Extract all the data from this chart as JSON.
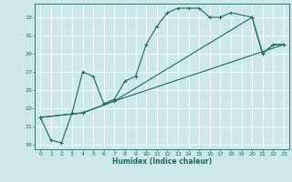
{
  "title": "",
  "xlabel": "Humidex (Indice chaleur)",
  "bg_color": "#cde8e8",
  "grid_color": "#ffffff",
  "line_color": "#1a6b60",
  "xlim": [
    -0.5,
    23.5
  ],
  "ylim": [
    18.5,
    34.5
  ],
  "xticks": [
    0,
    1,
    2,
    3,
    4,
    5,
    6,
    7,
    8,
    9,
    10,
    11,
    12,
    13,
    14,
    15,
    16,
    17,
    18,
    19,
    20,
    21,
    22,
    23
  ],
  "yticks": [
    19,
    21,
    23,
    25,
    27,
    29,
    31,
    33
  ],
  "line1_x": [
    0,
    1,
    2,
    3,
    4,
    5,
    6,
    7,
    8,
    9,
    10,
    11,
    12,
    13,
    14,
    15,
    16,
    17,
    18,
    20,
    21,
    22,
    23
  ],
  "line1_y": [
    22.0,
    19.5,
    19.2,
    22.5,
    27.0,
    26.5,
    23.5,
    24.0,
    26.0,
    26.5,
    30.0,
    32.0,
    33.5,
    34.0,
    34.0,
    34.0,
    33.0,
    33.0,
    33.5,
    33.0,
    29.0,
    30.0,
    30.0
  ],
  "line2_x": [
    0,
    4,
    7,
    23
  ],
  "line2_y": [
    22.0,
    22.5,
    23.8,
    30.0
  ],
  "line3_x": [
    0,
    4,
    7,
    20,
    21,
    22,
    23
  ],
  "line3_y": [
    22.0,
    22.5,
    23.8,
    33.0,
    29.0,
    30.0,
    30.0
  ]
}
